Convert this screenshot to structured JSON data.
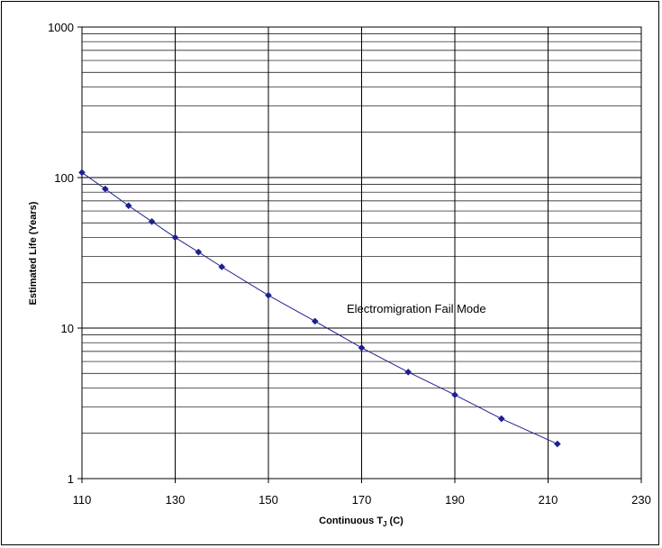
{
  "chart_data": {
    "type": "line",
    "title": "",
    "xlabel": "Continuous T",
    "xlabel_sub": "J",
    "xlabel_suffix": " (C)",
    "ylabel": "Estimated Life (Years)",
    "xlim": [
      110,
      230
    ],
    "ylim": [
      1,
      1000
    ],
    "y_scale": "log",
    "x_ticks": [
      110,
      130,
      150,
      170,
      190,
      210,
      230
    ],
    "y_ticks": [
      1,
      10,
      100,
      1000
    ],
    "grid": true,
    "annotation": {
      "text": "Electromigration Fail Mode",
      "x": 167,
      "y": 13
    },
    "series": [
      {
        "color": "#1f1f8f",
        "marker": "diamond",
        "x": [
          110,
          115,
          120,
          125,
          130,
          135,
          140,
          150,
          160,
          170,
          180,
          190,
          200,
          212
        ],
        "y": [
          108,
          84,
          65,
          51,
          40,
          32,
          25.5,
          16.5,
          11.1,
          7.4,
          5.1,
          3.6,
          2.5,
          1.7
        ]
      }
    ]
  }
}
